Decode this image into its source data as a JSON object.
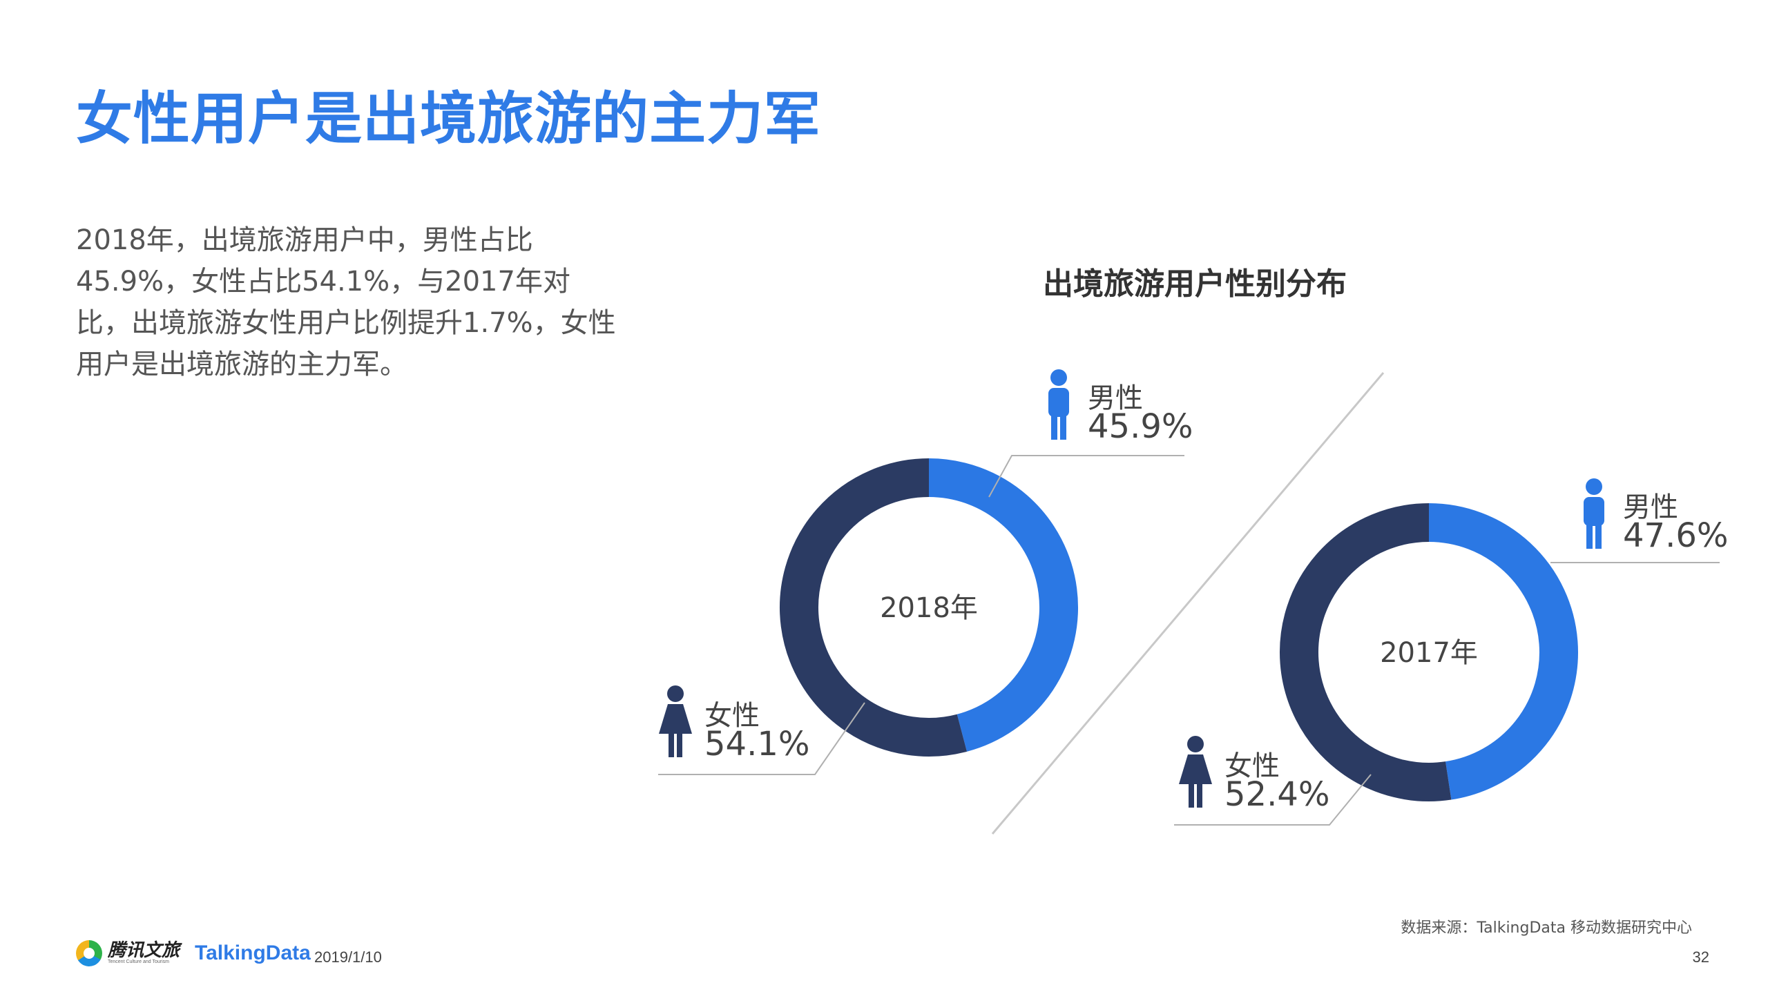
{
  "slide": {
    "title": "女性用户是出境旅游的主力军",
    "description": "2018年，出境旅游用户中，男性占比45.9%，女性占比54.1%，与2017年对比，出境旅游女性用户比例提升1.7%，女性用户是出境旅游的主力军。",
    "footer": {
      "date": "2019/1/10",
      "source": "数据来源：TalkingData 移动数据研究中心",
      "page_number": "32",
      "logo_tencent": "腾讯文旅",
      "logo_tencent_sub": "Tencent Culture and Tourism",
      "logo_talkingdata": "TalkingData"
    }
  },
  "chart_data": {
    "type": "pie",
    "variant": "donut",
    "title": "出境旅游用户性别分布",
    "colors": {
      "male": "#2b78e4",
      "female": "#2b3b63",
      "divider": "#c8c8c8",
      "leader": "#b0b0b0"
    },
    "charts": [
      {
        "center_label": "2018年",
        "slices": [
          {
            "label": "男性",
            "value": 45.9,
            "value_text": "45.9%",
            "icon": "male-person-icon"
          },
          {
            "label": "女性",
            "value": 54.1,
            "value_text": "54.1%",
            "icon": "female-person-icon"
          }
        ]
      },
      {
        "center_label": "2017年",
        "slices": [
          {
            "label": "男性",
            "value": 47.6,
            "value_text": "47.6%",
            "icon": "male-person-icon"
          },
          {
            "label": "女性",
            "value": 52.4,
            "value_text": "52.4%",
            "icon": "female-person-icon"
          }
        ]
      }
    ]
  }
}
